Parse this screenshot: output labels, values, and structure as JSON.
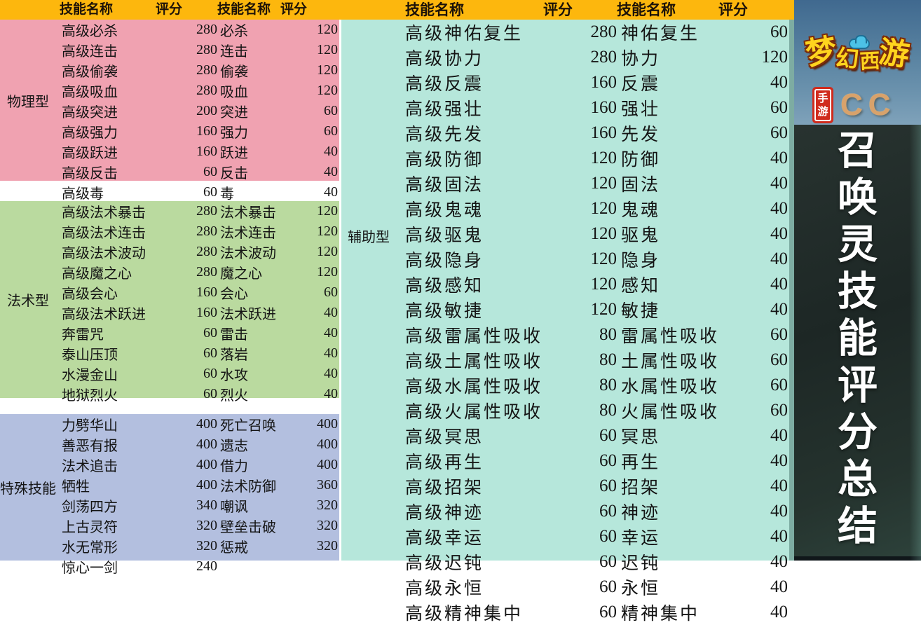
{
  "header": {
    "labels": [
      "技能名称",
      "评分",
      "技能名称",
      "评分",
      "技能名称",
      "评分",
      "技能名称",
      "评分"
    ]
  },
  "colors": {
    "header_yellow": "#fdb70d",
    "physical_pink": "#f0a2b1",
    "magic_green": "#bada9f",
    "special_lavender": "#b3bfdf",
    "support_cyan": "#b6e7db",
    "panel_dark": "#202926",
    "logo_yellow": "#ffd41e",
    "badge_red": "#d02b1d",
    "cc_tan": "#d8a26b"
  },
  "tables": {
    "physical": {
      "category": "物理型",
      "rows": [
        [
          "高级必杀",
          "280",
          "必杀",
          "120"
        ],
        [
          "高级连击",
          "280",
          "连击",
          "120"
        ],
        [
          "高级偷袭",
          "280",
          "偷袭",
          "120"
        ],
        [
          "高级吸血",
          "280",
          "吸血",
          "120"
        ],
        [
          "高级突进",
          "200",
          "突进",
          "60"
        ],
        [
          "高级强力",
          "160",
          "强力",
          "60"
        ],
        [
          "高级跃进",
          "160",
          "跃进",
          "40"
        ],
        [
          "高级反击",
          "60",
          "反击",
          "40"
        ],
        [
          "高级毒",
          "60",
          "毒",
          "40"
        ]
      ]
    },
    "magic": {
      "category": "法术型",
      "rows": [
        [
          "高级法术暴击",
          "280",
          "法术暴击",
          "120"
        ],
        [
          "高级法术连击",
          "280",
          "法术连击",
          "120"
        ],
        [
          "高级法术波动",
          "280",
          "法术波动",
          "120"
        ],
        [
          "高级魔之心",
          "280",
          "魔之心",
          "120"
        ],
        [
          "高级会心",
          "160",
          "会心",
          "60"
        ],
        [
          "高级法术跃进",
          "160",
          "法术跃进",
          "40"
        ],
        [
          "",
          "",
          "",
          ""
        ],
        [
          "奔雷咒",
          "60",
          "雷击",
          "40"
        ],
        [
          "泰山压顶",
          "60",
          "落岩",
          "40"
        ],
        [
          "水漫金山",
          "60",
          "水攻",
          "40"
        ],
        [
          "地狱烈火",
          "60",
          "烈火",
          "40"
        ]
      ]
    },
    "special": {
      "category": "特殊技能",
      "rows": [
        [
          "力劈华山",
          "400",
          "死亡召唤",
          "400"
        ],
        [
          "善恶有报",
          "400",
          "遗志",
          "400"
        ],
        [
          "法术追击",
          "400",
          "借力",
          "400"
        ],
        [
          "牺牲",
          "400",
          "法术防御",
          "360"
        ],
        [
          "剑荡四方",
          "340",
          "嘲讽",
          "320"
        ],
        [
          "上古灵符",
          "320",
          "壁垒击破",
          "320"
        ],
        [
          "水无常形",
          "320",
          "惩戒",
          "320"
        ],
        [
          "惊心一剑",
          "240",
          "",
          ""
        ]
      ]
    },
    "support": {
      "category": "辅助型",
      "rows": [
        [
          "高级神佑复生",
          "280",
          "神佑复生",
          "60"
        ],
        [
          "高级协力",
          "280",
          "协力",
          "120"
        ],
        [
          "高级反震",
          "160",
          "反震",
          "40"
        ],
        [
          "高级强壮",
          "160",
          "强壮",
          "60"
        ],
        [
          "高级先发",
          "160",
          "先发",
          "60"
        ],
        [
          "高级防御",
          "120",
          "防御",
          "40"
        ],
        [
          "高级固法",
          "120",
          "固法",
          "40"
        ],
        [
          "高级鬼魂",
          "120",
          "鬼魂",
          "40"
        ],
        [
          "高级驱鬼",
          "120",
          "驱鬼",
          "40"
        ],
        [
          "高级隐身",
          "120",
          "隐身",
          "40"
        ],
        [
          "高级感知",
          "120",
          "感知",
          "40"
        ],
        [
          "高级敏捷",
          "120",
          "敏捷",
          "40"
        ],
        [
          "高级雷属性吸收",
          "80",
          "雷属性吸收",
          "60"
        ],
        [
          "高级土属性吸收",
          "80",
          "土属性吸收",
          "60"
        ],
        [
          "高级水属性吸收",
          "80",
          "水属性吸收",
          "60"
        ],
        [
          "高级火属性吸收",
          "80",
          "火属性吸收",
          "60"
        ],
        [
          "高级冥思",
          "60",
          "冥思",
          "40"
        ],
        [
          "高级再生",
          "60",
          "再生",
          "40"
        ],
        [
          "高级招架",
          "60",
          "招架",
          "40"
        ],
        [
          "高级神迹",
          "60",
          "神迹",
          "40"
        ],
        [
          "高级幸运",
          "60",
          "幸运",
          "40"
        ],
        [
          "高级迟钝",
          "60",
          "迟钝",
          "40"
        ],
        [
          "高级永恒",
          "60",
          "永恒",
          "40"
        ],
        [
          "高级精神集中",
          "60",
          "精神集中",
          "40"
        ]
      ]
    }
  },
  "side_panel": {
    "game_logo": "梦幻西游",
    "logo_chars": [
      "梦",
      "幻",
      "西",
      "游"
    ],
    "badge": "手游",
    "badge_chars": [
      "手",
      "游"
    ],
    "cc_label": "CC",
    "vertical_title": "召唤灵技能评分总结"
  }
}
